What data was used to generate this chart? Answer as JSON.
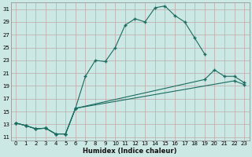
{
  "xlabel": "Humidex (Indice chaleur)",
  "bg_color": "#cce8e4",
  "grid_color": "#c0a8a8",
  "line_color": "#1a6b60",
  "xlim": [
    -0.5,
    23.5
  ],
  "ylim": [
    10.5,
    32.0
  ],
  "xticks": [
    0,
    1,
    2,
    3,
    4,
    5,
    6,
    7,
    8,
    9,
    10,
    11,
    12,
    13,
    14,
    15,
    16,
    17,
    18,
    19,
    20,
    21,
    22,
    23
  ],
  "yticks": [
    11,
    13,
    15,
    17,
    19,
    21,
    23,
    25,
    27,
    29,
    31
  ],
  "line1_x": [
    0,
    1,
    2,
    3,
    4,
    5,
    6,
    7,
    8,
    9,
    10,
    11,
    12,
    13,
    14,
    15,
    16,
    17,
    18,
    19
  ],
  "line1_y": [
    13.2,
    12.8,
    12.3,
    12.4,
    11.5,
    11.5,
    15.5,
    20.5,
    23.0,
    22.8,
    25.0,
    28.5,
    29.5,
    29.0,
    31.2,
    31.5,
    30.0,
    29.0,
    26.5,
    24.0
  ],
  "line2_x": [
    0,
    1,
    2,
    3,
    4,
    5,
    6,
    19,
    20,
    21,
    22,
    23
  ],
  "line2_y": [
    13.2,
    12.8,
    12.3,
    12.4,
    11.5,
    11.5,
    15.5,
    20.0,
    21.5,
    20.5,
    20.5,
    19.5
  ],
  "line3_x": [
    0,
    1,
    2,
    3,
    4,
    5,
    6,
    22,
    23
  ],
  "line3_y": [
    13.2,
    12.8,
    12.3,
    12.4,
    11.5,
    11.5,
    15.5,
    19.8,
    19.2
  ]
}
